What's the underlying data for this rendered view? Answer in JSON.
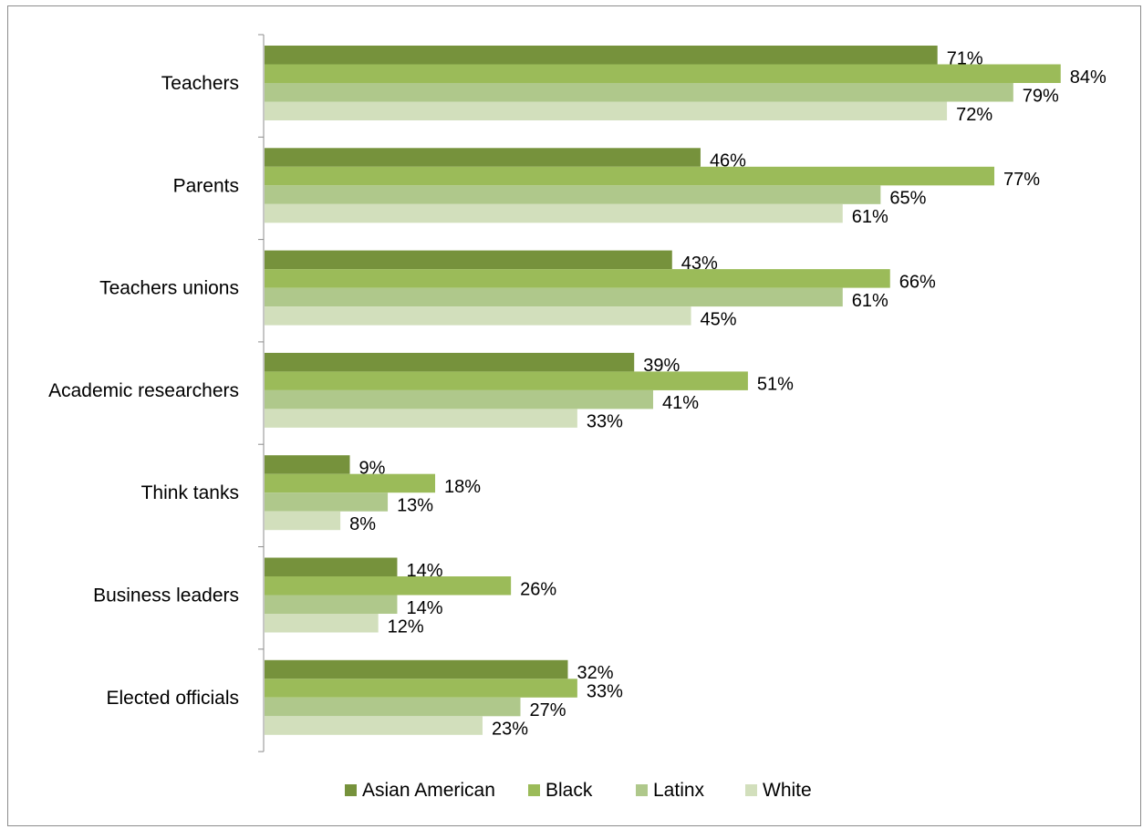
{
  "chart_data": {
    "type": "bar",
    "orientation": "horizontal",
    "categories": [
      "Teachers",
      "Parents",
      "Teachers unions",
      "Academic researchers",
      "Think tanks",
      "Business leaders",
      "Elected officials"
    ],
    "series": [
      {
        "name": "Asian American",
        "color": "#76923c",
        "values": [
          71,
          46,
          43,
          39,
          9,
          14,
          32
        ],
        "labels": [
          "71%",
          "46%",
          "43%",
          "39%",
          "9%",
          "14%",
          "32%"
        ]
      },
      {
        "name": "Black",
        "color": "#9bbb59",
        "values": [
          84,
          77,
          66,
          51,
          18,
          26,
          33
        ],
        "labels": [
          "84%",
          "77%",
          "66%",
          "51%",
          "18%",
          "26%",
          "33%"
        ]
      },
      {
        "name": "Latinx",
        "color": "#afc88b",
        "values": [
          79,
          65,
          61,
          41,
          13,
          14,
          27
        ],
        "labels": [
          "79%",
          "65%",
          "61%",
          "41%",
          "13%",
          "14%",
          "27%"
        ]
      },
      {
        "name": "White",
        "color": "#d2dfbc",
        "values": [
          72,
          61,
          45,
          33,
          8,
          12,
          23
        ],
        "labels": [
          "72%",
          "61%",
          "45%",
          "33%",
          "8%",
          "12%",
          "23%"
        ]
      }
    ],
    "value_format": "percent",
    "xlim": [
      0,
      100
    ],
    "grid": false,
    "legend_position": "bottom",
    "title": "",
    "xlabel": "",
    "ylabel": ""
  }
}
